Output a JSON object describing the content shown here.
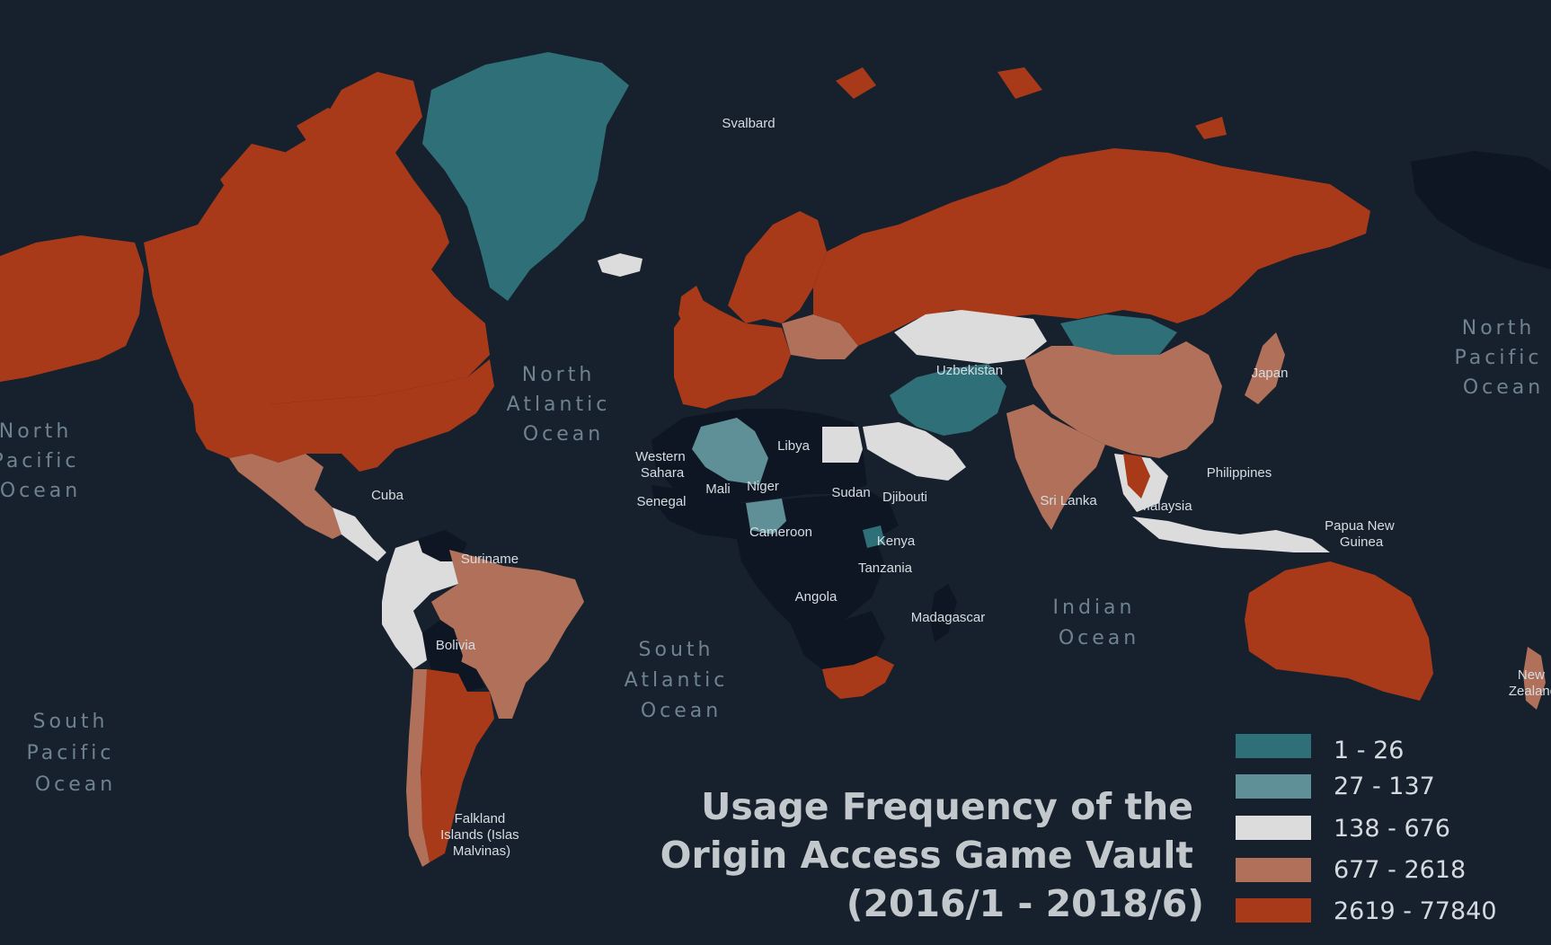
{
  "title": {
    "line1": "Usage Frequency of the",
    "line2": "Origin Access Game Vault",
    "line3": "(2016/1 - 2018/6)"
  },
  "legend": [
    {
      "label": "1 - 26",
      "color": "#2e6f78"
    },
    {
      "label": "27 - 137",
      "color": "#5f8f97"
    },
    {
      "label": "138 - 676",
      "color": "#dcdcdc"
    },
    {
      "label": "677 - 2618",
      "color": "#b0705a"
    },
    {
      "label": "2619 - 77840",
      "color": "#a83a1a"
    }
  ],
  "ocean_labels": {
    "north_pacific_west": [
      "North",
      "Pacific",
      "Ocean"
    ],
    "north_atlantic": [
      "North",
      "Atlantic",
      "Ocean"
    ],
    "north_pacific_east": [
      "North",
      "Pacific",
      "Ocean"
    ],
    "indian": [
      "Indian",
      "Ocean"
    ],
    "south_atlantic": [
      "South",
      "Atlantic",
      "Ocean"
    ],
    "south_pacific": [
      "South",
      "Pacific",
      "Ocean"
    ]
  },
  "place_labels": {
    "svalbard": "Svalbard",
    "cuba": "Cuba",
    "libya": "Libya",
    "western_sahara": [
      "Western",
      "Sahara"
    ],
    "mali": "Mali",
    "niger": "Niger",
    "sudan": "Sudan",
    "djibouti": "Djibouti",
    "senegal": "Senegal",
    "cameroon": "Cameroon",
    "kenya": "Kenya",
    "tanzania": "Tanzania",
    "angola": "Angola",
    "madagascar": "Madagascar",
    "suriname": "Suriname",
    "bolivia": "Bolivia",
    "falkland": [
      "Falkland",
      "Islands (Islas",
      "Malvinas)"
    ],
    "uzbekistan": "Uzbekistan",
    "sri_lanka": "Sri Lanka",
    "philippines": "Philippines",
    "malaysia": "Malaysia",
    "papua_new_guinea": [
      "Papua New",
      "Guinea"
    ],
    "new_zealand": [
      "New",
      "Zealand"
    ],
    "japan": "Japan"
  },
  "regions": {
    "alaska": "a_highest",
    "canada": "a_highest",
    "usa": "a_highest",
    "greenland": "a_lowest",
    "iceland": "a_mid",
    "mexico": "a_high",
    "central_america": "a_mid",
    "colombia_venezuela": "a_mid",
    "peru_ecuador": "a_mid",
    "brazil": "a_high",
    "bolivia": "a_none",
    "paraguay": "a_none",
    "chile_argentina": "a_highest",
    "chile_strip": "a_high",
    "guianas": "a_none",
    "western_europe": "a_highest",
    "scandinavia": "a_highest",
    "eastern_europe": "a_high",
    "russia": "a_highest",
    "kazakhstan": "a_mid",
    "mongolia": "a_lowest",
    "china": "a_high",
    "india": "a_high",
    "iran_central_asia": "a_lowest",
    "middle_east": "a_mid",
    "egypt": "a_mid",
    "algeria": "a_low",
    "north_africa_dark": "a_none",
    "sahel": "a_none",
    "central_africa": "a_none",
    "east_africa": "a_none",
    "southern_africa_dark": "a_none",
    "south_africa": "a_highest",
    "madagascar": "a_none",
    "chad_niger_patch": "a_low",
    "kenya_patch": "a_lowest",
    "japan": "a_high",
    "southeast_asia": "a_mid",
    "thailand": "a_highest",
    "indonesia": "a_mid",
    "australia": "a_highest",
    "new_zealand": "a_high",
    "ne_siberia_dark": "a_none"
  },
  "palette": {
    "a_lowest": "#2e6f78",
    "a_low": "#5f8f97",
    "a_mid": "#dcdcdc",
    "a_high": "#b0705a",
    "a_highest": "#a83a1a",
    "a_none": "#0e1623",
    "ocean": "#17202d"
  }
}
